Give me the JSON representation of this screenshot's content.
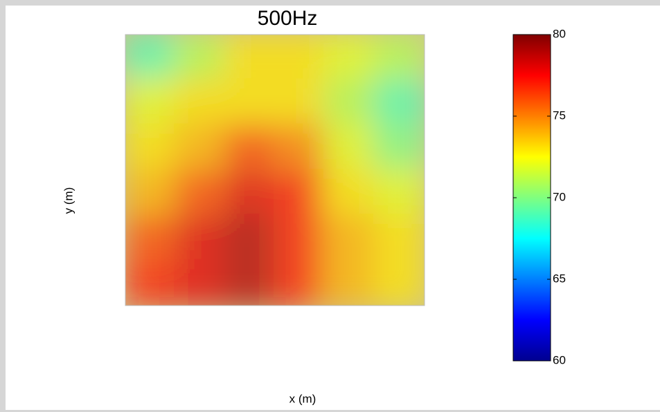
{
  "chart_data": {
    "type": "heatmap",
    "title": "500Hz",
    "x_label": "x (m)",
    "y_label": "y (m)",
    "colormap": "jet",
    "clim": [
      60,
      80
    ],
    "colorbar_ticks": [
      60,
      65,
      70,
      75,
      80
    ],
    "z": [
      [
        69,
        71,
        73,
        73,
        72,
        71
      ],
      [
        72,
        73,
        73,
        73,
        71,
        69
      ],
      [
        73,
        74,
        76,
        75,
        72,
        70
      ],
      [
        74,
        76,
        78,
        77,
        73,
        72
      ],
      [
        76,
        78,
        79,
        77,
        74,
        73
      ],
      [
        77,
        78,
        79,
        77,
        74,
        73
      ]
    ]
  }
}
